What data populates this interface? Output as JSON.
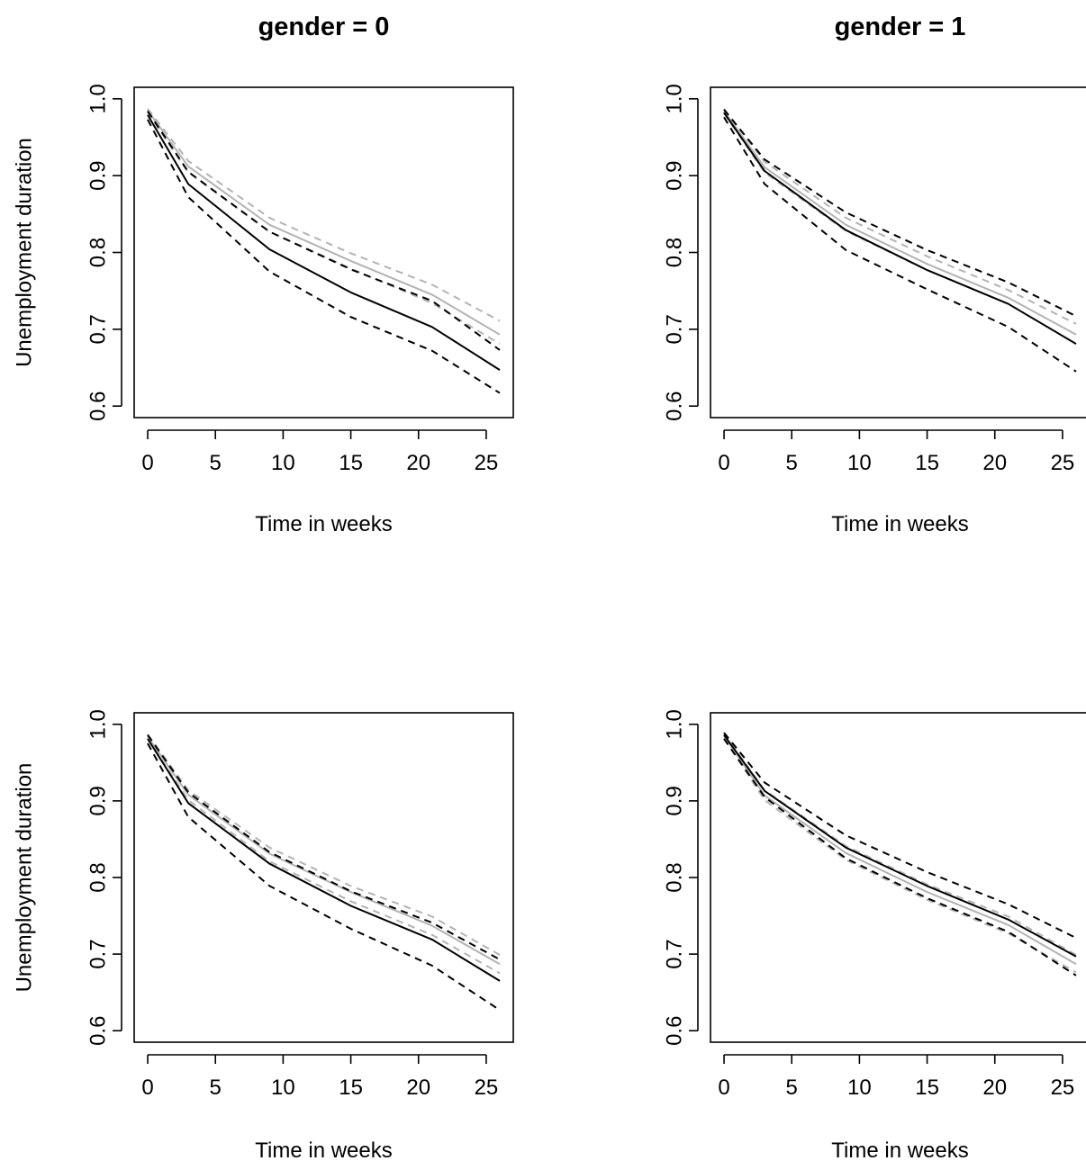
{
  "chart_data": [
    {
      "type": "line",
      "title": "gender = 0",
      "xlabel": "Time in weeks",
      "ylabel": "Unemployment duration",
      "xlim": [
        -1,
        27
      ],
      "ylim": [
        0.585,
        1.015
      ],
      "xticks": [
        "0",
        "5",
        "10",
        "15",
        "20",
        "25"
      ],
      "yticks": [
        "0.6",
        "0.7",
        "0.8",
        "0.9",
        "1.0"
      ],
      "x": [
        0,
        3,
        9,
        15,
        21,
        26
      ],
      "series": [
        {
          "color": "#000000",
          "dash": "solid",
          "values": [
            0.979,
            0.889,
            0.804,
            0.748,
            0.703,
            0.647
          ]
        },
        {
          "color": "#000000",
          "dash": "dashed",
          "values": [
            0.973,
            0.872,
            0.775,
            0.716,
            0.672,
            0.617
          ]
        },
        {
          "color": "#000000",
          "dash": "dashed",
          "values": [
            0.984,
            0.905,
            0.827,
            0.778,
            0.737,
            0.673
          ]
        },
        {
          "color": "#b3b3b3",
          "dash": "solid",
          "values": [
            0.985,
            0.912,
            0.836,
            0.789,
            0.745,
            0.693
          ]
        },
        {
          "color": "#b3b3b3",
          "dash": "dashed",
          "values": [
            0.982,
            0.904,
            0.827,
            0.779,
            0.734,
            0.681
          ]
        },
        {
          "color": "#b3b3b3",
          "dash": "dashed",
          "values": [
            0.987,
            0.919,
            0.845,
            0.799,
            0.758,
            0.711
          ]
        }
      ]
    },
    {
      "type": "line",
      "title": "gender = 1",
      "xlabel": "Time in weeks",
      "ylabel": "",
      "xlim": [
        -1,
        27
      ],
      "ylim": [
        0.585,
        1.015
      ],
      "xticks": [
        "0",
        "5",
        "10",
        "15",
        "20",
        "25"
      ],
      "yticks": [
        "0.6",
        "0.7",
        "0.8",
        "0.9",
        "1.0"
      ],
      "x": [
        0,
        3,
        9,
        15,
        21,
        26
      ],
      "series": [
        {
          "color": "#000000",
          "dash": "solid",
          "values": [
            0.982,
            0.906,
            0.829,
            0.777,
            0.733,
            0.681
          ]
        },
        {
          "color": "#000000",
          "dash": "dashed",
          "values": [
            0.976,
            0.889,
            0.803,
            0.752,
            0.703,
            0.645
          ]
        },
        {
          "color": "#000000",
          "dash": "dashed",
          "values": [
            0.986,
            0.921,
            0.852,
            0.803,
            0.761,
            0.717
          ]
        },
        {
          "color": "#b3b3b3",
          "dash": "solid",
          "values": [
            0.984,
            0.911,
            0.836,
            0.785,
            0.741,
            0.693
          ]
        },
        {
          "color": "#b3b3b3",
          "dash": "dashed",
          "values": [
            0.981,
            0.904,
            0.828,
            0.777,
            0.733,
            0.681
          ]
        },
        {
          "color": "#b3b3b3",
          "dash": "dashed",
          "values": [
            0.987,
            0.918,
            0.845,
            0.795,
            0.751,
            0.707
          ]
        }
      ]
    },
    {
      "type": "line",
      "title": "",
      "xlabel": "Time in weeks",
      "ylabel": "Unemployment duration",
      "xlim": [
        -1,
        27
      ],
      "ylim": [
        0.585,
        1.015
      ],
      "xticks": [
        "0",
        "5",
        "10",
        "15",
        "20",
        "25"
      ],
      "yticks": [
        "0.6",
        "0.7",
        "0.8",
        "0.9",
        "1.0"
      ],
      "x": [
        0,
        3,
        9,
        15,
        21,
        26
      ],
      "series": [
        {
          "color": "#000000",
          "dash": "solid",
          "values": [
            0.981,
            0.897,
            0.818,
            0.763,
            0.719,
            0.665
          ]
        },
        {
          "color": "#000000",
          "dash": "dashed",
          "values": [
            0.975,
            0.879,
            0.789,
            0.733,
            0.685,
            0.627
          ]
        },
        {
          "color": "#000000",
          "dash": "dashed",
          "values": [
            0.986,
            0.911,
            0.833,
            0.782,
            0.741,
            0.693
          ]
        },
        {
          "color": "#b3b3b3",
          "dash": "solid",
          "values": [
            0.984,
            0.908,
            0.831,
            0.781,
            0.737,
            0.687
          ]
        },
        {
          "color": "#b3b3b3",
          "dash": "dashed",
          "values": [
            0.981,
            0.901,
            0.821,
            0.769,
            0.725,
            0.675
          ]
        },
        {
          "color": "#b3b3b3",
          "dash": "dashed",
          "values": [
            0.987,
            0.914,
            0.839,
            0.789,
            0.749,
            0.699
          ]
        }
      ]
    },
    {
      "type": "line",
      "title": "",
      "xlabel": "Time in weeks",
      "ylabel": "",
      "xlim": [
        -1,
        27
      ],
      "ylim": [
        0.585,
        1.015
      ],
      "xticks": [
        "0",
        "5",
        "10",
        "15",
        "20",
        "25"
      ],
      "yticks": [
        "0.6",
        "0.7",
        "0.8",
        "0.9",
        "1.0"
      ],
      "x": [
        0,
        3,
        9,
        15,
        21,
        26
      ],
      "series": [
        {
          "color": "#000000",
          "dash": "solid",
          "values": [
            0.986,
            0.913,
            0.839,
            0.789,
            0.745,
            0.697
          ]
        },
        {
          "color": "#000000",
          "dash": "dashed",
          "values": [
            0.981,
            0.905,
            0.825,
            0.773,
            0.729,
            0.672
          ]
        },
        {
          "color": "#000000",
          "dash": "dashed",
          "values": [
            0.989,
            0.924,
            0.855,
            0.807,
            0.765,
            0.721
          ]
        },
        {
          "color": "#b3b3b3",
          "dash": "solid",
          "values": [
            0.985,
            0.907,
            0.832,
            0.781,
            0.738,
            0.687
          ]
        },
        {
          "color": "#b3b3b3",
          "dash": "dashed",
          "values": [
            0.982,
            0.901,
            0.823,
            0.771,
            0.727,
            0.676
          ]
        },
        {
          "color": "#b3b3b3",
          "dash": "dashed",
          "values": [
            0.988,
            0.914,
            0.841,
            0.791,
            0.749,
            0.699
          ]
        }
      ]
    }
  ]
}
